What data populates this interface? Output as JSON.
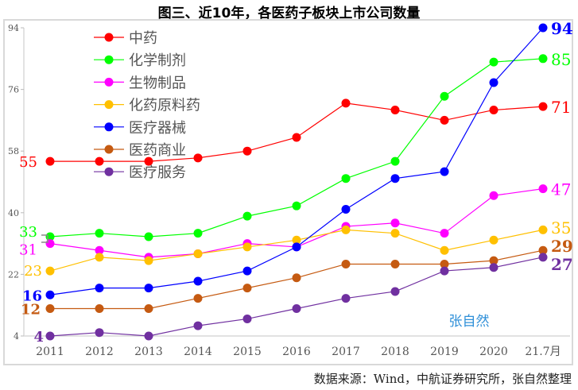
{
  "chart_data": {
    "type": "line",
    "title": "图三、近10年，各医药子板块上市公司数量",
    "categories": [
      "2011",
      "2012",
      "2013",
      "2014",
      "2015",
      "2016",
      "2017",
      "2018",
      "2019",
      "2020",
      "21.7月"
    ],
    "ylim": [
      4,
      94
    ],
    "yticks": [
      4,
      22,
      40,
      58,
      76,
      94
    ],
    "grid": false,
    "legend": "top-left",
    "series": [
      {
        "name": "中药",
        "color": "#ff0000",
        "values": [
          55,
          55,
          55,
          56,
          58,
          62,
          72,
          70,
          67,
          70,
          71
        ]
      },
      {
        "name": "化学制剂",
        "color": "#00ff00",
        "values": [
          33,
          34,
          33,
          34,
          39,
          42,
          50,
          55,
          74,
          84,
          85
        ]
      },
      {
        "name": "生物制品",
        "color": "#ff00ff",
        "values": [
          31,
          29,
          27,
          28,
          31,
          30,
          36,
          37,
          34,
          45,
          47
        ]
      },
      {
        "name": "化药原料药",
        "color": "#ffc000",
        "values": [
          23,
          27,
          26,
          28,
          30,
          32,
          35,
          34,
          29,
          32,
          35
        ]
      },
      {
        "name": "医疗器械",
        "color": "#0000ff",
        "values": [
          16,
          18,
          18,
          20,
          23,
          30,
          41,
          50,
          52,
          78,
          94
        ]
      },
      {
        "name": "医药商业",
        "color": "#c55a11",
        "values": [
          12,
          12,
          12,
          15,
          18,
          21,
          25,
          25,
          25,
          26,
          29
        ]
      },
      {
        "name": "医疗服务",
        "color": "#7030a0",
        "values": [
          4,
          5,
          4,
          7,
          9,
          12,
          15,
          17,
          23,
          24,
          27
        ]
      }
    ]
  },
  "watermark": "张自然",
  "source": "数据来源：Wind，中航证券研究所，张自然整理"
}
